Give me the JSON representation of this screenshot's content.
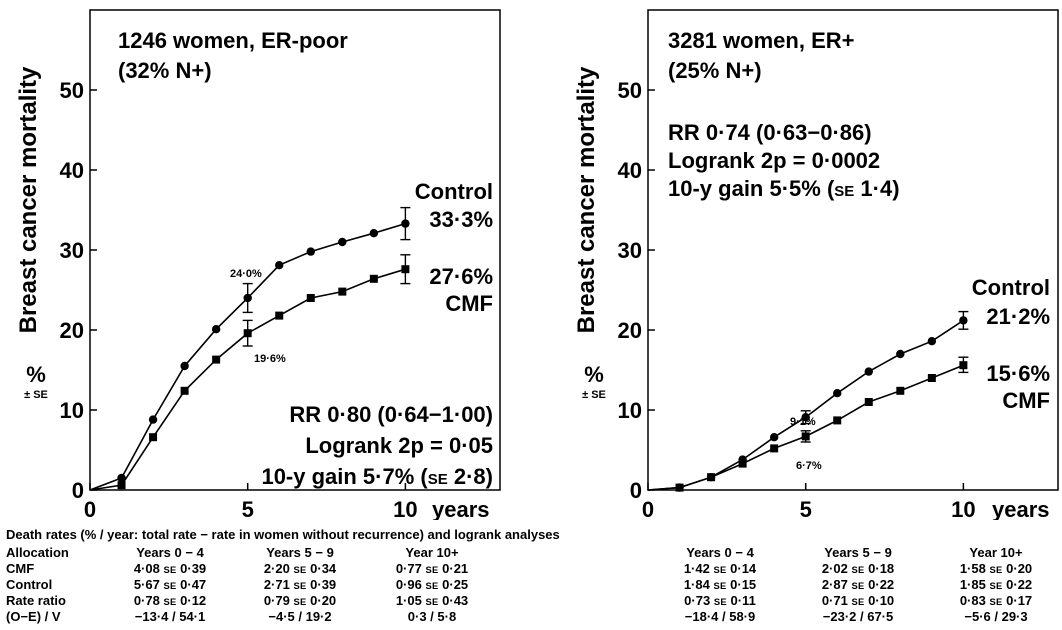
{
  "chart_data": [
    {
      "type": "line",
      "title": "1246 women, ER-poor",
      "subtitle": "(32% N+)",
      "ylabel": "Breast cancer mortality",
      "ylabel_unit": "%",
      "ylabel_unit_sub": "± SE",
      "xlabel": "years",
      "xlim": [
        0,
        13
      ],
      "ylim": [
        0,
        60
      ],
      "x_ticks": [
        "0",
        "5",
        "10"
      ],
      "y_ticks": [
        "0",
        "10",
        "20",
        "30",
        "40",
        "50"
      ],
      "series": [
        {
          "name": "Control",
          "marker": "circle",
          "x": [
            0,
            1,
            2,
            3,
            4,
            5,
            6,
            7,
            8,
            9,
            10
          ],
          "y": [
            0,
            1.5,
            8.8,
            15.5,
            20.1,
            24.0,
            28.1,
            29.8,
            31.0,
            32.1,
            33.3
          ],
          "error_bars": [
            {
              "x": 5,
              "low": 22.2,
              "high": 25.8
            },
            {
              "x": 10,
              "low": 31.3,
              "high": 35.3
            }
          ],
          "end_label": "Control",
          "end_value": "33·3%"
        },
        {
          "name": "CMF",
          "marker": "square",
          "x": [
            0,
            1,
            2,
            3,
            4,
            5,
            6,
            7,
            8,
            9,
            10
          ],
          "y": [
            0,
            0.6,
            6.6,
            12.4,
            16.3,
            19.6,
            21.8,
            24.0,
            24.8,
            26.4,
            27.6
          ],
          "error_bars": [
            {
              "x": 5,
              "low": 18.0,
              "high": 21.2
            },
            {
              "x": 10,
              "low": 25.8,
              "high": 29.4
            }
          ],
          "end_label": "CMF",
          "end_value": "27·6%"
        }
      ],
      "annotations": {
        "control_year5": "24·0%",
        "cmf_year5": "19·6%",
        "rr": "RR 0·80 (0·64−1·00)",
        "logrank": "Logrank 2p = 0·05",
        "gain_prefix": "10-y gain 5·7% (",
        "gain_se": "SE",
        "gain_suffix": " 2·8)"
      }
    },
    {
      "type": "line",
      "title": "3281 women, ER+",
      "subtitle": "(25% N+)",
      "ylabel": "Breast cancer mortality",
      "ylabel_unit": "%",
      "ylabel_unit_sub": "± SE",
      "xlabel": "years",
      "xlim": [
        0,
        13
      ],
      "ylim": [
        0,
        60
      ],
      "x_ticks": [
        "0",
        "5",
        "10"
      ],
      "y_ticks": [
        "0",
        "10",
        "20",
        "30",
        "40",
        "50"
      ],
      "series": [
        {
          "name": "Control",
          "marker": "circle",
          "x": [
            0,
            1,
            2,
            3,
            4,
            5,
            6,
            7,
            8,
            9,
            10
          ],
          "y": [
            0,
            0.3,
            1.6,
            3.8,
            6.6,
            9.1,
            12.1,
            14.8,
            17.0,
            18.6,
            21.2
          ],
          "error_bars": [
            {
              "x": 5,
              "low": 8.3,
              "high": 9.9
            },
            {
              "x": 10,
              "low": 20.1,
              "high": 22.3
            }
          ],
          "end_label": "Control",
          "end_value": "21·2%"
        },
        {
          "name": "CMF",
          "marker": "square",
          "x": [
            0,
            1,
            2,
            3,
            4,
            5,
            6,
            7,
            8,
            9,
            10
          ],
          "y": [
            0,
            0.3,
            1.6,
            3.3,
            5.2,
            6.7,
            8.7,
            11.0,
            12.4,
            14.0,
            15.6
          ],
          "error_bars": [
            {
              "x": 5,
              "low": 6.0,
              "high": 7.4
            },
            {
              "x": 10,
              "low": 14.7,
              "high": 16.6
            }
          ],
          "end_label": "CMF",
          "end_value": "15·6%"
        }
      ],
      "annotations": {
        "control_year5": "9·1%",
        "cmf_year5": "6·7%",
        "rr": "RR 0·74 (0·63−0·86)",
        "logrank": "Logrank 2p = 0·0002",
        "gain_prefix": "10-y gain 5·5% (",
        "gain_se": "SE",
        "gain_suffix": " 1·4)"
      }
    }
  ],
  "table": {
    "caption": "Death rates (% / year: total rate − rate in women without recurrence) and logrank analyses",
    "row_labels": [
      "Allocation",
      "CMF",
      "Control",
      "Rate ratio",
      "(O−E) / V"
    ],
    "left": {
      "headers": [
        "Years 0 − 4",
        "Years 5 − 9",
        "Year 10+"
      ],
      "rows": [
        [
          "4·08 SE 0·39",
          "2·20 SE 0·34",
          "0·77 SE 0·21"
        ],
        [
          "5·67 SE 0·47",
          "2·71 SE 0·39",
          "0·96 SE 0·25"
        ],
        [
          "0·78 SE 0·12",
          "0·79 SE 0·20",
          "1·05 SE 0·43"
        ],
        [
          "−13·4 / 54·1",
          "−4·5 / 19·2",
          "0·3 / 5·8"
        ]
      ]
    },
    "right": {
      "headers": [
        "Years 0 − 4",
        "Years 5 − 9",
        "Year 10+"
      ],
      "rows": [
        [
          "1·42 SE 0·14",
          "2·02 SE 0·18",
          "1·58 SE 0·20"
        ],
        [
          "1·84 SE 0·15",
          "2·87 SE 0·22",
          "1·85 SE 0·22"
        ],
        [
          "0·73 SE 0·11",
          "0·71 SE 0·10",
          "0·83 SE 0·17"
        ],
        [
          "−18·4 / 58·9",
          "−23·2 / 67·5",
          "−5·6 / 29·3"
        ]
      ]
    }
  },
  "colors": {
    "ink": "#000000",
    "background": "#ffffff"
  }
}
